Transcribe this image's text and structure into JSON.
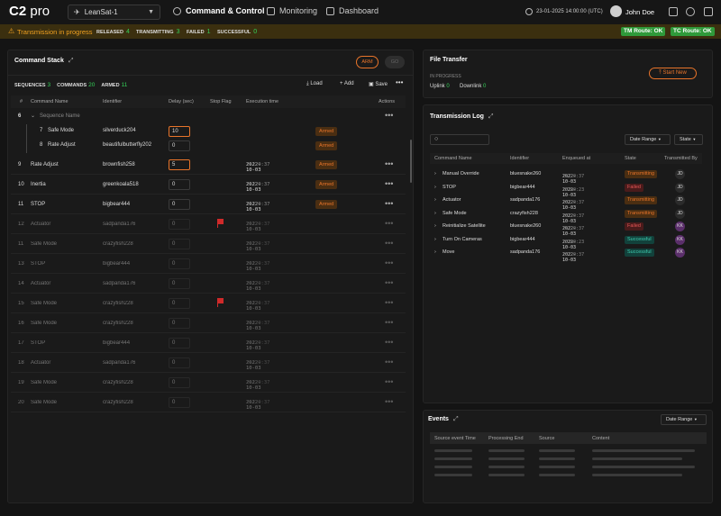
{
  "app": {
    "logo_bold": "C2",
    "logo_light": "pro",
    "satellite": "LeanSat-1"
  },
  "nav": {
    "tabs": [
      {
        "label": "Command & Control"
      },
      {
        "label": "Monitoring"
      },
      {
        "label": "Dashboard"
      }
    ]
  },
  "header": {
    "datetime": "23-01-2025 14:00:00 (UTC)",
    "user": "John Doe"
  },
  "status": {
    "message": "Transmission in progress",
    "released_label": "RELEASED",
    "released": "4",
    "transmitting_label": "TRANSMITTING",
    "transmitting": "3",
    "failed_label": "FAILED",
    "failed": "1",
    "successful_label": "SUCCESSFUL",
    "successful": "0",
    "tm_route": "TM Route: OK",
    "tc_route": "TC Route: OK"
  },
  "command_stack": {
    "title": "Command Stack",
    "arm": "ARM",
    "go": "GO",
    "sequences_label": "SEQUENCES",
    "sequences": "3",
    "commands_label": "COMMANDS",
    "commands": "20",
    "armed_label": "ARMED",
    "armed": "11",
    "load": "Load",
    "add": "Add",
    "save": "Save",
    "columns": {
      "num": "#",
      "name": "Command Name",
      "identifier": "Identifier",
      "delay": "Delay (sec)",
      "stop": "Stop Flag",
      "exec": "Execution time",
      "actions": "Actions"
    },
    "group": {
      "index": "6",
      "name": "Sequence Name"
    },
    "sub_rows": [
      {
        "index": "7",
        "name": "Safe Mode",
        "identifier": "silverduck204",
        "delay": "10",
        "status": "Armed"
      },
      {
        "index": "8",
        "name": "Rate Adjust",
        "identifier": "beautifulbutterfly202",
        "delay": "0",
        "status": "Armed"
      }
    ],
    "rows": [
      {
        "index": "9",
        "name": "Rate Adjust",
        "identifier": "brownfish258",
        "delay": "5",
        "date": "2022-10-03",
        "time": "12:20:37",
        "status": "Armed"
      },
      {
        "index": "10",
        "name": "Inertia",
        "identifier": "greenkoala518",
        "delay": "0",
        "date": "2022-10-03",
        "time": "12:20:37",
        "status": "Armed"
      },
      {
        "index": "11",
        "name": "STOP",
        "identifier": "bigbear444",
        "delay": "0",
        "date": "2022-10-03",
        "time": "12:20:37",
        "status": "Armed"
      },
      {
        "index": "12",
        "name": "Actuator",
        "identifier": "sadpanda176",
        "delay": "0",
        "date": "2022-10-03",
        "time": "12:20:37",
        "status": ""
      },
      {
        "index": "11",
        "name": "Safe Mode",
        "identifier": "crazyfish228",
        "delay": "0",
        "date": "2022-10-03",
        "time": "12:20:37",
        "status": ""
      },
      {
        "index": "13",
        "name": "STOP",
        "identifier": "bigbear444",
        "delay": "0",
        "date": "2022-10-03",
        "time": "12:20:37",
        "status": ""
      },
      {
        "index": "14",
        "name": "Actuator",
        "identifier": "sadpanda176",
        "delay": "0",
        "date": "2022-10-03",
        "time": "12:20:37",
        "status": ""
      },
      {
        "index": "15",
        "name": "Safe Mode",
        "identifier": "crazyfish228",
        "delay": "0",
        "date": "2022-10-03",
        "time": "12:20:37",
        "status": ""
      },
      {
        "index": "16",
        "name": "Safe Mode",
        "identifier": "crazyfish228",
        "delay": "0",
        "date": "2022-10-03",
        "time": "12:20:37",
        "status": ""
      },
      {
        "index": "17",
        "name": "STOP",
        "identifier": "bigbear444",
        "delay": "0",
        "date": "2022-10-03",
        "time": "12:20:37",
        "status": ""
      },
      {
        "index": "18",
        "name": "Actuator",
        "identifier": "sadpanda176",
        "delay": "0",
        "date": "2022-10-03",
        "time": "12:20:37",
        "status": ""
      },
      {
        "index": "19",
        "name": "Safe Mode",
        "identifier": "crazyfish228",
        "delay": "0",
        "date": "2022-10-03",
        "time": "12:20:37",
        "status": ""
      },
      {
        "index": "20",
        "name": "Safe Mode",
        "identifier": "crazyfish228",
        "delay": "0",
        "date": "2022-10-03",
        "time": "12:20:37",
        "status": ""
      }
    ]
  },
  "file_transfer": {
    "title": "File Transfer",
    "in_progress": "IN PROGRESS",
    "uplink_label": "Uplink",
    "uplink": "0",
    "downlink_label": "Downlink",
    "downlink": "0",
    "start": "Start New"
  },
  "transmission_log": {
    "title": "Transmission Log",
    "date_range": "Date Range",
    "state": "State",
    "columns": {
      "name": "Command Name",
      "identifier": "Identifier",
      "enqueued": "Enqueued at",
      "state": "State",
      "by": "Transmitted By"
    },
    "rows": [
      {
        "name": "Manual Override",
        "identifier": "bluesnake260",
        "date": "2022-10-03",
        "time": "12:20:37",
        "state": "Transmitting",
        "by": "JD"
      },
      {
        "name": "STOP",
        "identifier": "bigbear444",
        "date": "2022-10-03",
        "time": "15:00:23",
        "state": "Failed",
        "by": "JD"
      },
      {
        "name": "Actuator",
        "identifier": "sadpanda176",
        "date": "2022-10-03",
        "time": "16:20:37",
        "state": "Transmitting",
        "by": "JD"
      },
      {
        "name": "Safe Mode",
        "identifier": "crazyfish228",
        "date": "2022-10-03",
        "time": "16:20:37",
        "state": "Transmitting",
        "by": "JD"
      },
      {
        "name": "Reinitialize Satellite",
        "identifier": "bluesnake260",
        "date": "2022-10-03",
        "time": "12:20:37",
        "state": "Failed",
        "by": "KK"
      },
      {
        "name": "Turn On Cameras",
        "identifier": "bigbear444",
        "date": "2022-10-03",
        "time": "15:00:23",
        "state": "Successful",
        "by": "KK"
      },
      {
        "name": "Move",
        "identifier": "sadpanda176",
        "date": "2022-10-03",
        "time": "16:20:37",
        "state": "Successful",
        "by": "KK"
      }
    ]
  },
  "events": {
    "title": "Events",
    "date_range": "Date Range",
    "columns": {
      "source_time": "Source event Time",
      "processing": "Processing End",
      "source": "Source",
      "content": "Content"
    }
  },
  "colors": {
    "accent": "#e8742a",
    "ok": "#2f9a3a",
    "warning": "#f0a020"
  }
}
